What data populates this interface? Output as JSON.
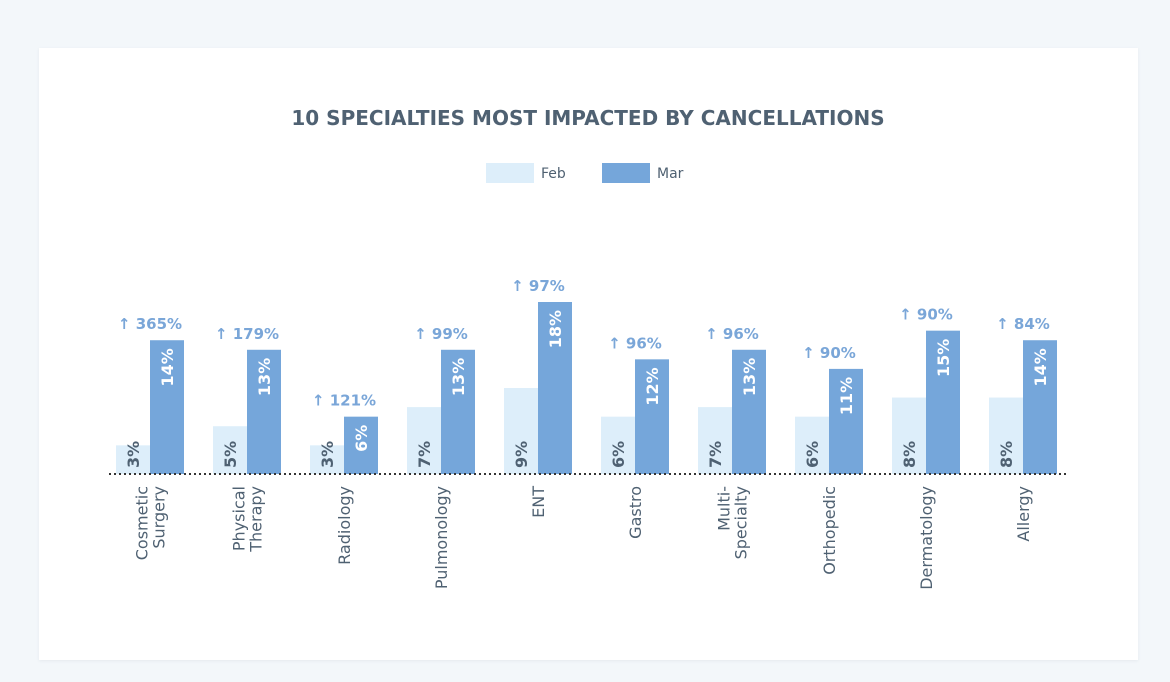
{
  "colors": {
    "feb": "#ddeefa",
    "mar": "#75a6da",
    "change": "#7aa6d8",
    "text": "#4f6172",
    "axis": "#333333"
  },
  "chart_data": {
    "type": "bar",
    "title": "10 SPECIALTIES MOST IMPACTED BY CANCELLATIONS",
    "legend": "top-center",
    "grid": false,
    "categories": [
      [
        "Cosmetic",
        "Surgery"
      ],
      [
        "Physical",
        "Therapy"
      ],
      [
        "Radiology"
      ],
      [
        "Pulmonology"
      ],
      [
        "ENT"
      ],
      [
        "Gastro"
      ],
      [
        "Multi-",
        "Specialty"
      ],
      [
        "Orthopedic"
      ],
      [
        "Dermatology"
      ],
      [
        "Allergy"
      ]
    ],
    "series": [
      {
        "name": "Feb",
        "values": [
          3,
          5,
          3,
          7,
          9,
          6,
          7,
          6,
          8,
          8
        ],
        "labels": [
          "3%",
          "5%",
          "3%",
          "7%",
          "9%",
          "6%",
          "7%",
          "6%",
          "8%",
          "8%"
        ]
      },
      {
        "name": "Mar",
        "values": [
          14,
          13,
          6,
          13,
          18,
          12,
          13,
          11,
          15,
          14
        ],
        "labels": [
          "14%",
          "13%",
          "6%",
          "13%",
          "18%",
          "12%",
          "13%",
          "11%",
          "15%",
          "14%"
        ]
      }
    ],
    "annotations": [
      "↑ 365%",
      "↑ 179%",
      "↑ 121%",
      "↑ 99%",
      "↑ 97%",
      "↑ 96%",
      "↑ 96%",
      "↑ 90%",
      "↑ 90%",
      "↑ 84%"
    ],
    "ylim": [
      0,
      19
    ]
  }
}
